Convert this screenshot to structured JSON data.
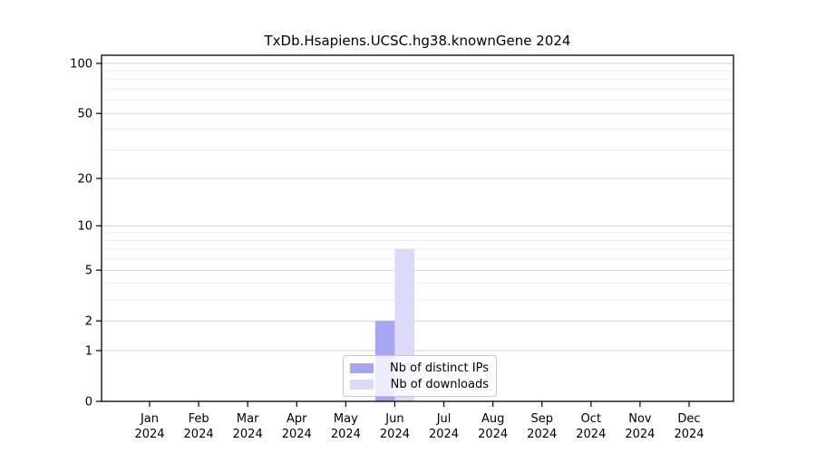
{
  "chart_data": {
    "type": "bar",
    "title": "TxDb.Hsapiens.UCSC.hg38.knownGene 2024",
    "xlabel": "",
    "ylabel": "",
    "scale": "log1p",
    "ylim": [
      0,
      100
    ],
    "grid": true,
    "legend_position": "lower center",
    "categories": [
      "Jan",
      "Feb",
      "Mar",
      "Apr",
      "May",
      "Jun",
      "Jul",
      "Aug",
      "Sep",
      "Oct",
      "Nov",
      "Dec"
    ],
    "category_year_label": "2024",
    "y_ticks": [
      0,
      1,
      2,
      5,
      10,
      20,
      50,
      100
    ],
    "y_minor_gridlines": [
      3,
      4,
      6,
      7,
      8,
      9,
      30,
      40,
      60,
      70,
      80,
      90
    ],
    "series": [
      {
        "name": "Nb of distinct IPs",
        "color": "#a6a6f2",
        "values": [
          0,
          0,
          0,
          0,
          0,
          2,
          0,
          0,
          0,
          0,
          0,
          0
        ]
      },
      {
        "name": "Nb of downloads",
        "color": "#dbdbf8",
        "values": [
          0,
          0,
          0,
          0,
          0,
          7,
          0,
          0,
          0,
          0,
          0,
          0
        ]
      }
    ]
  },
  "colors": {
    "frame": "#000000",
    "major_gridline": "#d2d2d2",
    "minor_gridline": "#ececec",
    "tick": "#000000",
    "legend_border": "#c8c8c8"
  }
}
